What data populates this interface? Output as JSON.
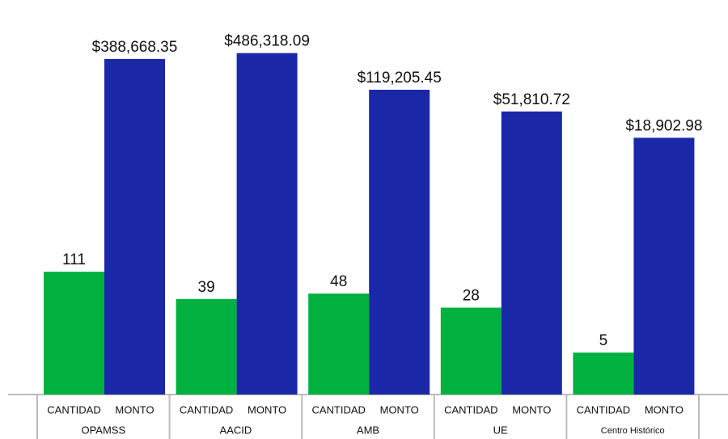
{
  "chart_data": {
    "type": "bar",
    "log_scale": true,
    "categories": [
      "OPAMSS",
      "AACID",
      "AMB",
      "UE",
      "Centro Histórico"
    ],
    "series": [
      {
        "name": "CANTIDAD",
        "color": "#00b140",
        "values": [
          111,
          39,
          48,
          28,
          5
        ]
      },
      {
        "name": "MONTO",
        "color": "#1a28a8",
        "values": [
          388668.35,
          486318.09,
          119205.45,
          51810.72,
          18902.98
        ],
        "value_labels": [
          "$388,668.35",
          "$486,318.09",
          "$119,205.45",
          "$51,810.72",
          "$18,902.98"
        ]
      }
    ],
    "ylim": [
      1,
      3000000
    ]
  }
}
